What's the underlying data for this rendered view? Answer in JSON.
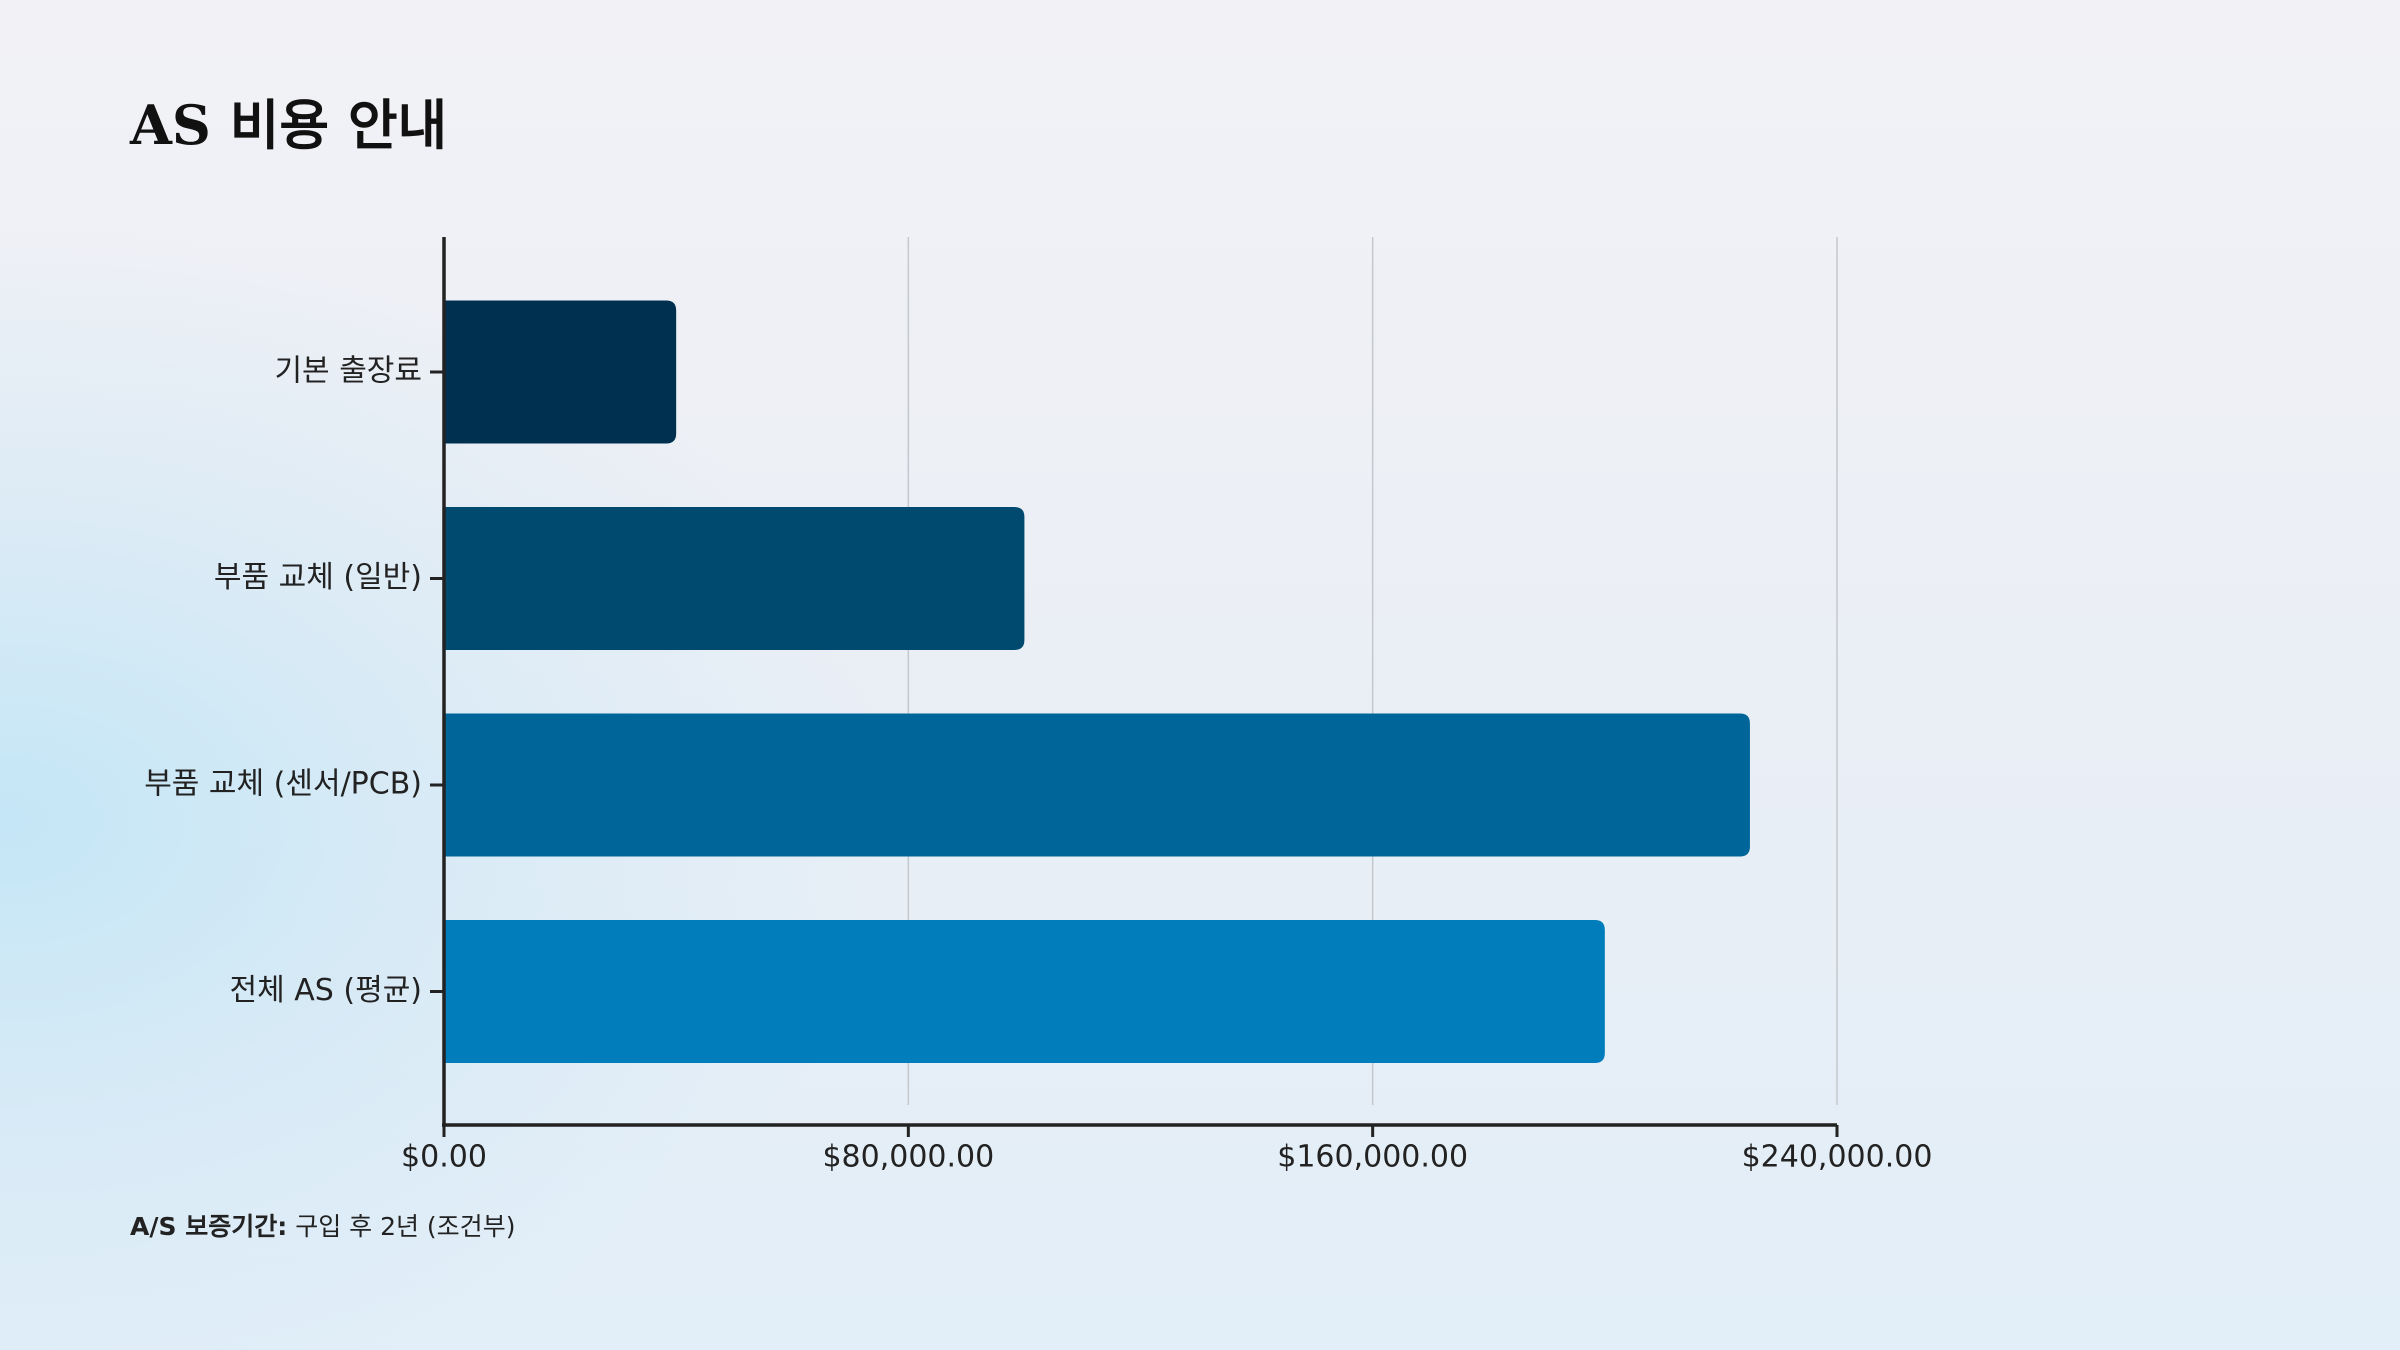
{
  "chart_data": {
    "type": "hbar",
    "title": "AS 비용 안내",
    "categories": [
      "기본 출장료",
      "부품 교체 (일반)",
      "부품 교체 (센서/PCB)",
      "전체 AS (평균)"
    ],
    "values": [
      40000,
      100000,
      225000,
      200000
    ],
    "colors": [
      "#00304f",
      "#004a70",
      "#006699",
      "#007dba"
    ],
    "xlim": [
      0,
      240000
    ],
    "xticks": [
      {
        "value": 0,
        "label": "$0.00"
      },
      {
        "value": 80000,
        "label": "$80,000.00"
      },
      {
        "value": 160000,
        "label": "$160,000.00"
      },
      {
        "value": 240000,
        "label": "$240,000.00"
      }
    ],
    "grid": true,
    "note_label": "A/S 보증기간:",
    "note": "구입 후 2년 (조건부)"
  }
}
